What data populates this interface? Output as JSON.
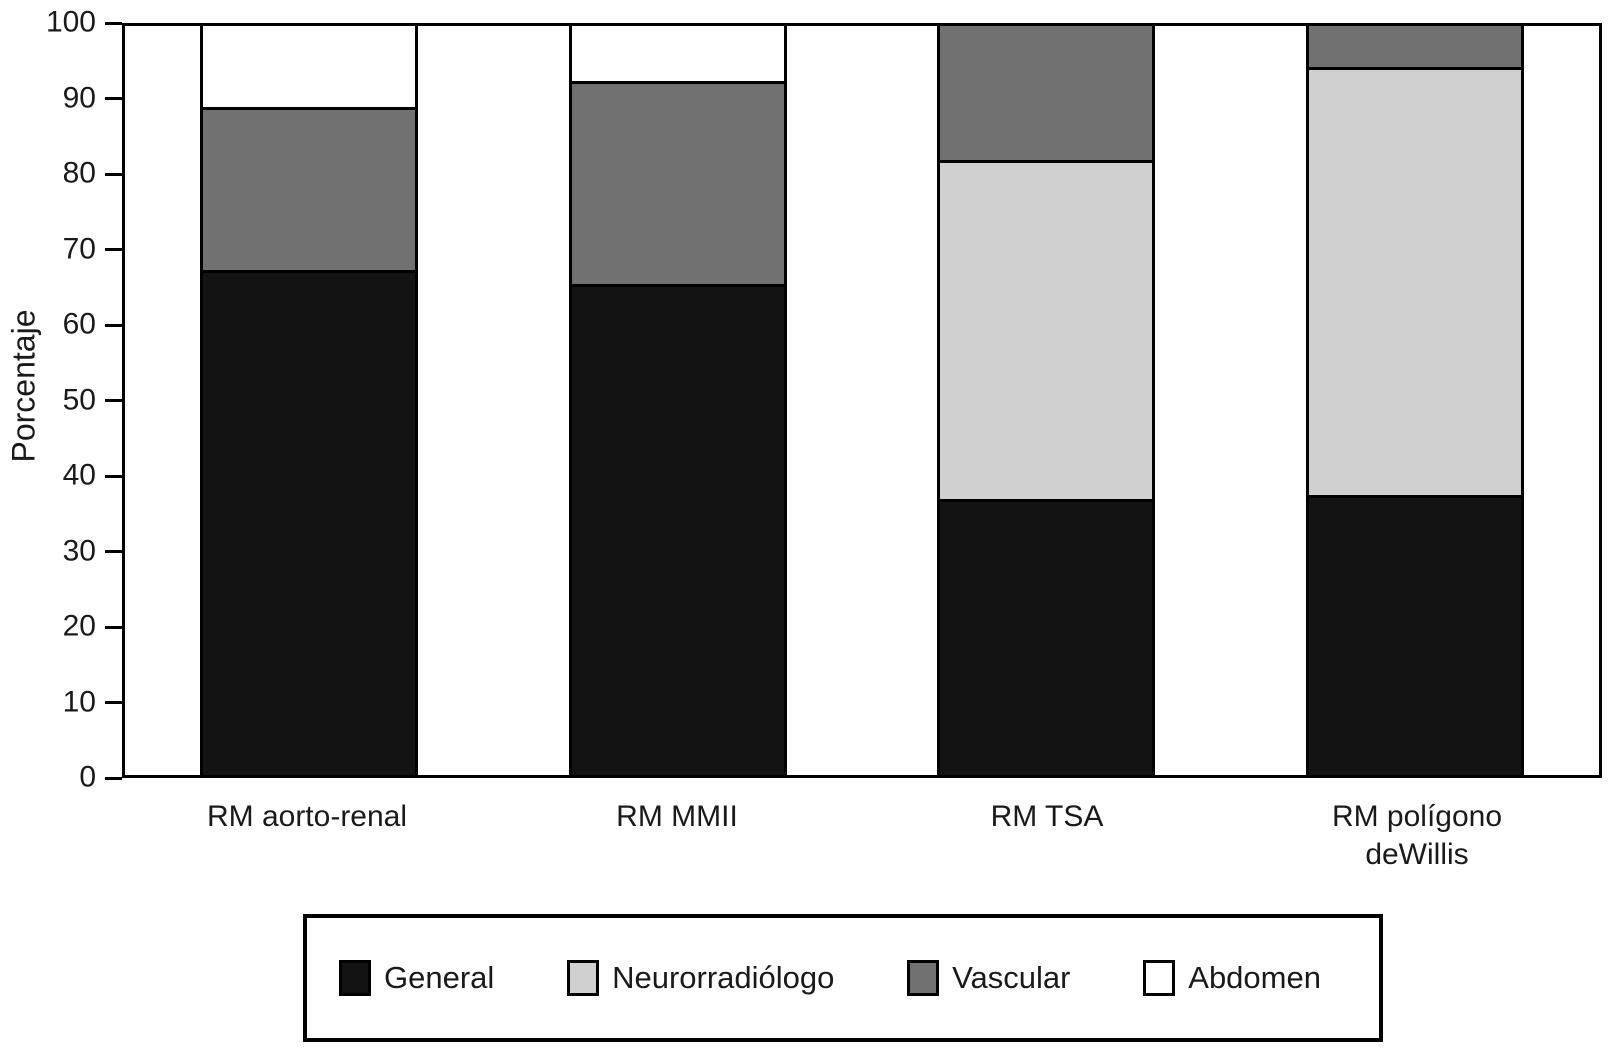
{
  "chart_data": {
    "type": "stacked_bar",
    "title": "",
    "ylabel": "Porcentaje",
    "xlabel": "",
    "ylim": [
      0,
      100
    ],
    "yticks": [
      0,
      10,
      20,
      30,
      40,
      50,
      60,
      70,
      80,
      90,
      100
    ],
    "grid": false,
    "legend_position": "bottom",
    "categories": [
      "RM aorto-renal",
      "RM MMII",
      "RM TSA",
      "RM polígono\ndeWillis"
    ],
    "series": [
      {
        "name": "General",
        "color": "#131313",
        "values": [
          67.4,
          65.5,
          36.9,
          37.4
        ]
      },
      {
        "name": "Neurorradiólogo",
        "color": "#d0d0d0",
        "values": [
          0,
          0,
          45.2,
          57.1
        ]
      },
      {
        "name": "Vascular",
        "color": "#717171",
        "values": [
          21.8,
          27.1,
          17.9,
          5.5
        ]
      },
      {
        "name": "Abdomen",
        "color": "#ffffff",
        "values": [
          10.8,
          7.4,
          0,
          0
        ]
      }
    ],
    "axis_color": "#000000",
    "text_color": "#1a1a1a"
  }
}
